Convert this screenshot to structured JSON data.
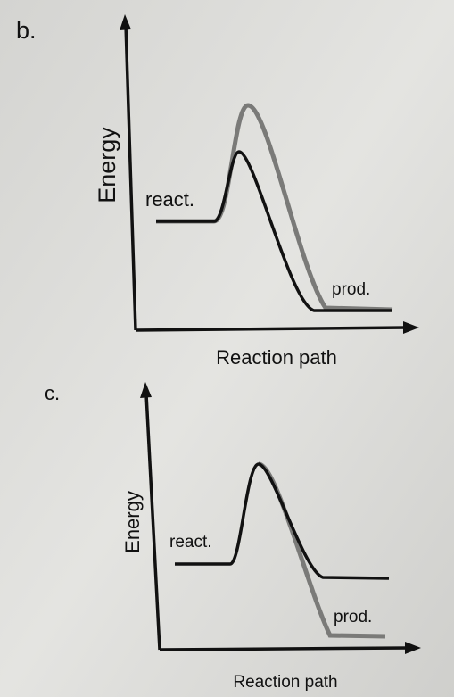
{
  "panels": [
    {
      "label": "b.",
      "y_axis_label": "Energy",
      "x_axis_label": "Reaction path",
      "reactant_label": "react.",
      "product_label": "prod."
    },
    {
      "label": "c.",
      "y_axis_label": "Energy",
      "x_axis_label": "Reaction path",
      "reactant_label": "react.",
      "product_label": "prod."
    }
  ]
}
